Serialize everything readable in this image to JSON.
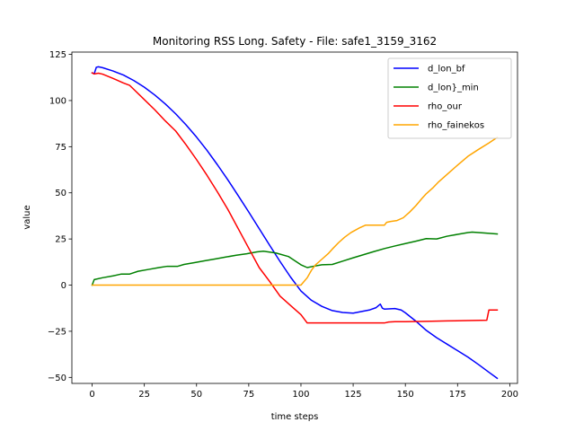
{
  "chart_data": {
    "type": "line",
    "title": "Monitoring RSS Long. Safety - File: safe1_3159_3162",
    "xlabel": "time steps",
    "ylabel": "value",
    "xlim": [
      -9.7,
      203.7
    ],
    "ylim": [
      -53.25,
      126.25
    ],
    "xticks": [
      0,
      25,
      50,
      75,
      100,
      125,
      150,
      175,
      200
    ],
    "yticks": [
      -50,
      -25,
      0,
      25,
      50,
      75,
      100,
      125
    ],
    "grid": false,
    "legend": "top-right",
    "series": [
      {
        "name": "d_lon_bf",
        "color": "#0000ff",
        "points": [
          [
            0,
            115
          ],
          [
            1,
            114.5
          ],
          [
            2,
            118
          ],
          [
            3,
            118.3
          ],
          [
            5,
            117.8
          ],
          [
            10,
            116
          ],
          [
            15,
            113.8
          ],
          [
            20,
            110.8
          ],
          [
            25,
            107.2
          ],
          [
            30,
            103
          ],
          [
            35,
            98.2
          ],
          [
            40,
            92.8
          ],
          [
            45,
            86.8
          ],
          [
            50,
            80.2
          ],
          [
            55,
            73
          ],
          [
            60,
            65.2
          ],
          [
            65,
            57
          ],
          [
            70,
            48.4
          ],
          [
            75,
            39.6
          ],
          [
            80,
            30.6
          ],
          [
            85,
            21.6
          ],
          [
            90,
            12.8
          ],
          [
            95,
            4.4
          ],
          [
            100,
            -3.2
          ],
          [
            105,
            -8.2
          ],
          [
            110,
            -11.5
          ],
          [
            115,
            -13.8
          ],
          [
            120,
            -14.8
          ],
          [
            125,
            -15.2
          ],
          [
            128,
            -14.5
          ],
          [
            133,
            -13.4
          ],
          [
            136,
            -12.2
          ],
          [
            138,
            -10.3
          ],
          [
            139,
            -12.5
          ],
          [
            140,
            -13
          ],
          [
            145,
            -12.7
          ],
          [
            148,
            -13.5
          ],
          [
            150,
            -15
          ],
          [
            155,
            -19.5
          ],
          [
            160,
            -24.5
          ],
          [
            165,
            -28.5
          ],
          [
            170,
            -32
          ],
          [
            175,
            -35.5
          ],
          [
            180,
            -39
          ],
          [
            185,
            -43
          ],
          [
            190,
            -47.2
          ],
          [
            194,
            -50.5
          ]
        ]
      },
      {
        "name": "d_lon}_min",
        "color": "#008000",
        "points": [
          [
            0,
            0
          ],
          [
            1,
            3
          ],
          [
            5,
            4
          ],
          [
            10,
            5
          ],
          [
            14,
            6
          ],
          [
            18,
            6
          ],
          [
            22,
            7.5
          ],
          [
            27,
            8.5
          ],
          [
            32,
            9.5
          ],
          [
            36,
            10.2
          ],
          [
            41,
            10.2
          ],
          [
            44,
            11.2
          ],
          [
            49,
            12.2
          ],
          [
            54,
            13.2
          ],
          [
            59,
            14.2
          ],
          [
            64,
            15.2
          ],
          [
            69,
            16.2
          ],
          [
            74,
            17
          ],
          [
            79,
            18
          ],
          [
            82,
            18.4
          ],
          [
            88,
            17.4
          ],
          [
            94,
            15.5
          ],
          [
            100,
            11
          ],
          [
            103,
            9.5
          ],
          [
            106,
            10.2
          ],
          [
            110,
            11
          ],
          [
            115,
            11.2
          ],
          [
            120,
            13
          ],
          [
            125,
            14.8
          ],
          [
            130,
            16.5
          ],
          [
            135,
            18.2
          ],
          [
            140,
            19.8
          ],
          [
            145,
            21.2
          ],
          [
            150,
            22.5
          ],
          [
            155,
            23.8
          ],
          [
            160,
            25.2
          ],
          [
            165,
            25
          ],
          [
            170,
            26.5
          ],
          [
            175,
            27.5
          ],
          [
            180,
            28.5
          ],
          [
            182,
            28.7
          ],
          [
            188,
            28.2
          ],
          [
            194,
            27.7
          ]
        ]
      },
      {
        "name": "rho_our",
        "color": "#ff0000",
        "points": [
          [
            0,
            115
          ],
          [
            1,
            114.4
          ],
          [
            3,
            114.8
          ],
          [
            5,
            114.3
          ],
          [
            10,
            112
          ],
          [
            15,
            109.5
          ],
          [
            18,
            108.2
          ],
          [
            20,
            106
          ],
          [
            25,
            100.5
          ],
          [
            30,
            95
          ],
          [
            35,
            89
          ],
          [
            40,
            83.5
          ],
          [
            45,
            76
          ],
          [
            50,
            68
          ],
          [
            55,
            59.5
          ],
          [
            60,
            50.5
          ],
          [
            65,
            41
          ],
          [
            70,
            30.5
          ],
          [
            75,
            20
          ],
          [
            80,
            9.5
          ],
          [
            85,
            2
          ],
          [
            90,
            -6
          ],
          [
            95,
            -11
          ],
          [
            100,
            -16
          ],
          [
            103,
            -20.5
          ],
          [
            105,
            -20.5
          ],
          [
            110,
            -20.5
          ],
          [
            115,
            -20.5
          ],
          [
            120,
            -20.5
          ],
          [
            125,
            -20.5
          ],
          [
            130,
            -20.5
          ],
          [
            135,
            -20.5
          ],
          [
            140,
            -20.5
          ],
          [
            142,
            -20
          ],
          [
            145,
            -19.8
          ],
          [
            150,
            -19.8
          ],
          [
            160,
            -19.6
          ],
          [
            170,
            -19.4
          ],
          [
            180,
            -19.2
          ],
          [
            189,
            -19
          ],
          [
            190,
            -13.5
          ],
          [
            193,
            -13.5
          ],
          [
            194,
            -13.5
          ]
        ]
      },
      {
        "name": "rho_fainekos",
        "color": "#ffa500",
        "points": [
          [
            0,
            0
          ],
          [
            5,
            0
          ],
          [
            10,
            0
          ],
          [
            20,
            0
          ],
          [
            30,
            0
          ],
          [
            40,
            0
          ],
          [
            50,
            0
          ],
          [
            60,
            0
          ],
          [
            70,
            0
          ],
          [
            80,
            0
          ],
          [
            90,
            0
          ],
          [
            95,
            0
          ],
          [
            100,
            0
          ],
          [
            103,
            4
          ],
          [
            105,
            8
          ],
          [
            107,
            11
          ],
          [
            110,
            14
          ],
          [
            113,
            17
          ],
          [
            115,
            19.5
          ],
          [
            118,
            23
          ],
          [
            121,
            26
          ],
          [
            124,
            28.5
          ],
          [
            128,
            31
          ],
          [
            131,
            32.5
          ],
          [
            135,
            32.5
          ],
          [
            140,
            32.5
          ],
          [
            141,
            34
          ],
          [
            143,
            34.5
          ],
          [
            146,
            35
          ],
          [
            149,
            36.5
          ],
          [
            152,
            39.5
          ],
          [
            155,
            43
          ],
          [
            158,
            47
          ],
          [
            160,
            49.5
          ],
          [
            163,
            52.5
          ],
          [
            166,
            56
          ],
          [
            170,
            60
          ],
          [
            175,
            65
          ],
          [
            180,
            69.8
          ],
          [
            185,
            73.5
          ],
          [
            190,
            77
          ],
          [
            194,
            80
          ]
        ]
      }
    ]
  }
}
